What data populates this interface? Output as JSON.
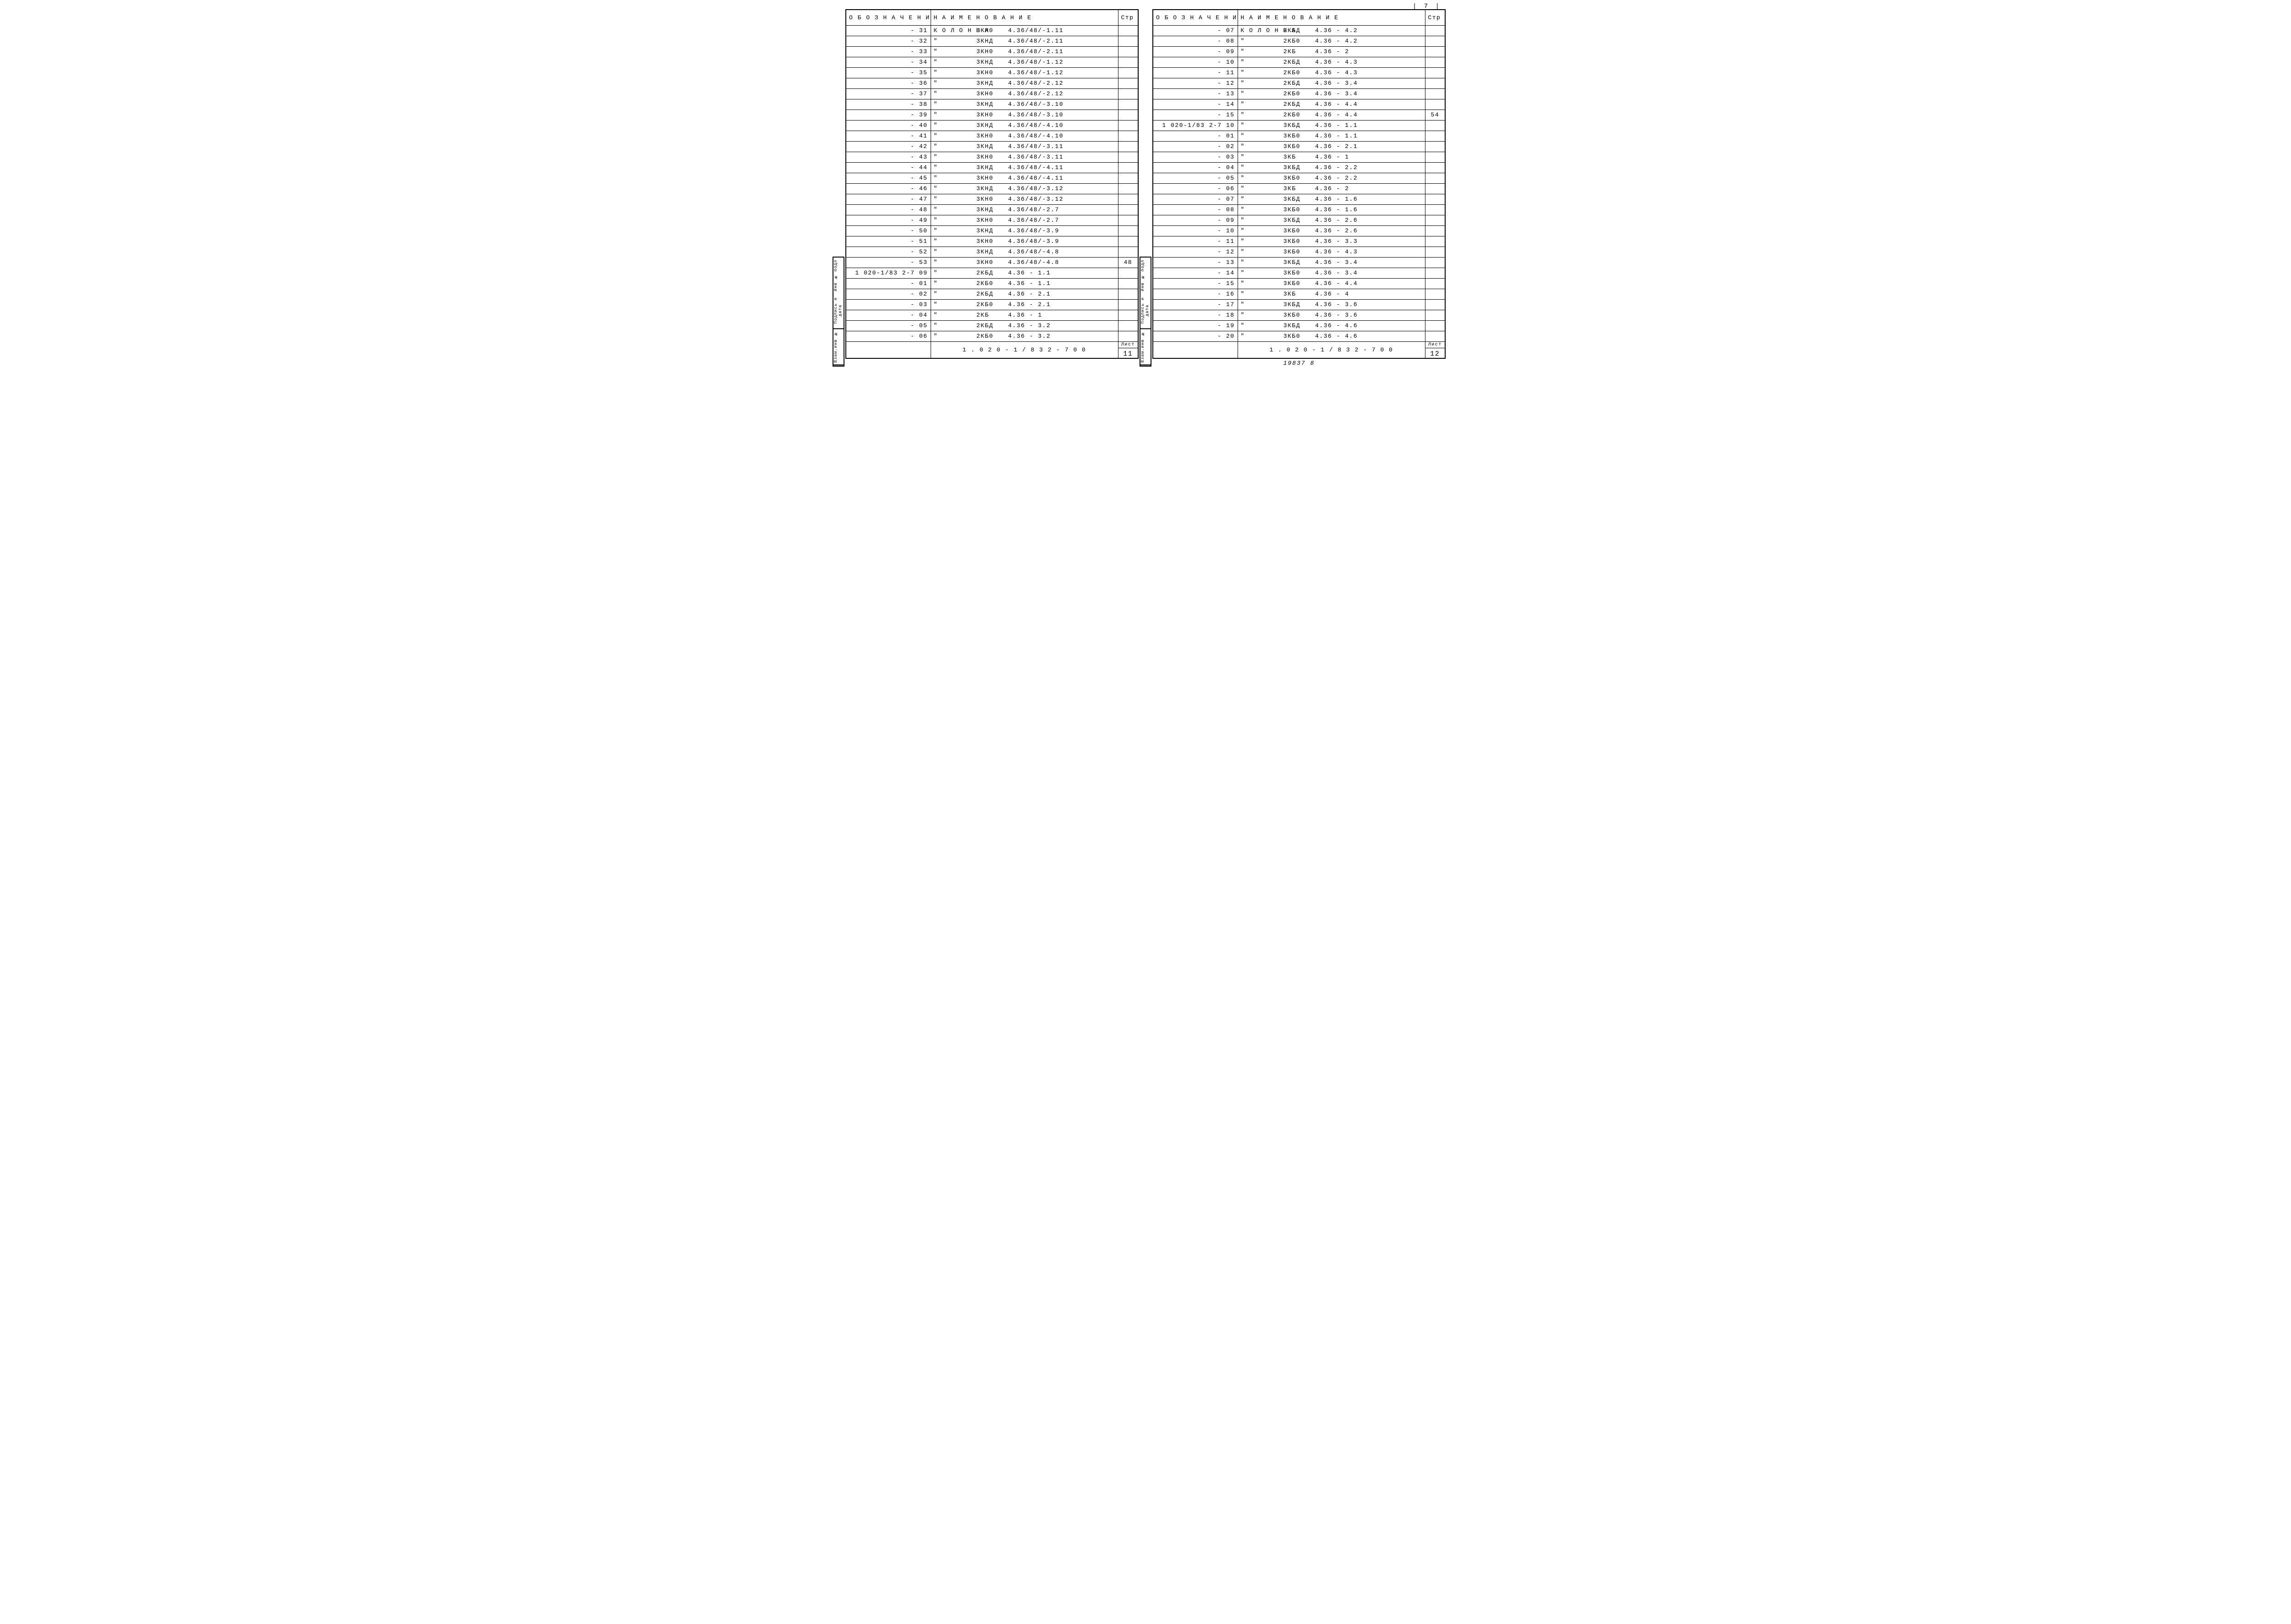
{
  "headers": {
    "designation": "О Б О З Н А Ч Е Н И Е",
    "name": "Н А И М Е Н О В А Н И Е",
    "page": "Стр"
  },
  "doc_number": "1 . 0 2 0 - 1 / 8 3   2 - 7   0 0",
  "sheet_label": "Лист",
  "page_num_top": "| 7 |",
  "below_note": "19837  8",
  "sidebar": [
    "Инв № подл",
    "Подпись и дата",
    "Взам.инв №"
  ],
  "left": {
    "sheet": "11",
    "rows": [
      {
        "des": "- 31",
        "pref": "К О Л О Н Н А",
        "code": "3КН0",
        "val": "4.36/48/-1.11",
        "pg": ""
      },
      {
        "des": "- 32",
        "pref": "\"",
        "code": "3КНД",
        "val": "4.36/48/-2.11",
        "pg": ""
      },
      {
        "des": "- 33",
        "pref": "\"",
        "code": "3КН0",
        "val": "4.36/48/-2.11",
        "pg": ""
      },
      {
        "des": "- 34",
        "pref": "\"",
        "code": "3КНД",
        "val": "4.36/48/-1.12",
        "pg": ""
      },
      {
        "des": "- 35",
        "pref": "\"",
        "code": "3КН0",
        "val": "4.36/48/-1.12",
        "pg": ""
      },
      {
        "des": "- 36",
        "pref": "\"",
        "code": "3КНД",
        "val": "4.36/48/-2.12",
        "pg": ""
      },
      {
        "des": "- 37",
        "pref": "\"",
        "code": "3КН0",
        "val": "4.36/48/-2.12",
        "pg": ""
      },
      {
        "des": "- 38",
        "pref": "\"",
        "code": "3КНД",
        "val": "4.36/48/-3.10",
        "pg": ""
      },
      {
        "des": "- 39",
        "pref": "\"",
        "code": "3КН0",
        "val": "4.36/48/-3.10",
        "pg": ""
      },
      {
        "des": "- 40",
        "pref": "\"",
        "code": "3КНД",
        "val": "4.36/48/-4.10",
        "pg": ""
      },
      {
        "des": "- 41",
        "pref": "\"",
        "code": "3КН0",
        "val": "4.36/48/-4.10",
        "pg": ""
      },
      {
        "des": "- 42",
        "pref": "\"",
        "code": "3КНД",
        "val": "4.36/48/-3.11",
        "pg": ""
      },
      {
        "des": "- 43",
        "pref": "\"",
        "code": "3КН0",
        "val": "4.36/48/-3.11",
        "pg": ""
      },
      {
        "des": "- 44",
        "pref": "\"",
        "code": "3КНД",
        "val": "4.36/48/-4.11",
        "pg": ""
      },
      {
        "des": "- 45",
        "pref": "\"",
        "code": "3КН0",
        "val": "4.36/48/-4.11",
        "pg": ""
      },
      {
        "des": "- 46",
        "pref": "\"",
        "code": "3КНД",
        "val": "4.36/48/-3.12",
        "pg": ""
      },
      {
        "des": "- 47",
        "pref": "\"",
        "code": "3КН0",
        "val": "4.36/48/-3.12",
        "pg": ""
      },
      {
        "des": "- 48",
        "pref": "\"",
        "code": "3КНД",
        "val": "4.36/48/-2.7",
        "pg": ""
      },
      {
        "des": "- 49",
        "pref": "\"",
        "code": "3КН0",
        "val": "4.36/48/-2.7",
        "pg": ""
      },
      {
        "des": "- 50",
        "pref": "\"",
        "code": "3КНД",
        "val": "4.36/48/-3.9",
        "pg": ""
      },
      {
        "des": "- 51",
        "pref": "\"",
        "code": "3КН0",
        "val": "4.36/48/-3.9",
        "pg": ""
      },
      {
        "des": "- 52",
        "pref": "\"",
        "code": "3КНД",
        "val": "4.36/48/-4.8",
        "pg": ""
      },
      {
        "des": "- 53",
        "pref": "\"",
        "code": "3КН0",
        "val": "4.36/48/-4.8",
        "pg": "48"
      },
      {
        "des": "1 020-1/83 2-7 09",
        "pref": "\"",
        "code": "2КБД",
        "val": "4.36 - 1.1",
        "pg": ""
      },
      {
        "des": "- 01",
        "pref": "\"",
        "code": "2КБ0",
        "val": "4.36 - 1.1",
        "pg": ""
      },
      {
        "des": "- 02",
        "pref": "\"",
        "code": "2КБД",
        "val": "4.36 - 2.1",
        "pg": ""
      },
      {
        "des": "- 03",
        "pref": "\"",
        "code": "2КБ0",
        "val": "4.36 - 2.1",
        "pg": ""
      },
      {
        "des": "- 04",
        "pref": "\"",
        "code": "2КБ",
        "val": "4.36 - 1",
        "pg": ""
      },
      {
        "des": "- 05",
        "pref": "\"",
        "code": "2КБД",
        "val": "4.36 - 3.2",
        "pg": ""
      },
      {
        "des": "- 06",
        "pref": "\"",
        "code": "2КБ0",
        "val": "4.36 - 3.2",
        "pg": ""
      }
    ]
  },
  "right": {
    "sheet": "12",
    "rows": [
      {
        "des": "- 07",
        "pref": "К О Л О Н Н А",
        "code": "2КБД",
        "val": "4.36 - 4.2",
        "pg": ""
      },
      {
        "des": "- 08",
        "pref": "\"",
        "code": "2КБ0",
        "val": "4.36 - 4.2",
        "pg": ""
      },
      {
        "des": "- 09",
        "pref": "\"",
        "code": "2КБ",
        "val": "4.36 - 2",
        "pg": ""
      },
      {
        "des": "- 10",
        "pref": "\"",
        "code": "2КБД",
        "val": "4.36 - 4.3",
        "pg": ""
      },
      {
        "des": "- 11",
        "pref": "\"",
        "code": "2КБ0",
        "val": "4.36 - 4.3",
        "pg": ""
      },
      {
        "des": "- 12",
        "pref": "\"",
        "code": "2КБД",
        "val": "4.36 - 3.4",
        "pg": ""
      },
      {
        "des": "- 13",
        "pref": "\"",
        "code": "2КБ0",
        "val": "4.36 - 3.4",
        "pg": ""
      },
      {
        "des": "- 14",
        "pref": "\"",
        "code": "2КБД",
        "val": "4.36 - 4.4",
        "pg": ""
      },
      {
        "des": "- 15",
        "pref": "\"",
        "code": "2КБ0",
        "val": "4.36 - 4.4",
        "pg": "54"
      },
      {
        "des": "1 020-1/83 2-7 10",
        "pref": "\"",
        "code": "3КБД",
        "val": "4.36 - 1.1",
        "pg": ""
      },
      {
        "des": "- 01",
        "pref": "\"",
        "code": "3КБ0",
        "val": "4.36 - 1.1",
        "pg": ""
      },
      {
        "des": "- 02",
        "pref": "\"",
        "code": "3КБ0",
        "val": "4.36 - 2.1",
        "pg": ""
      },
      {
        "des": "- 03",
        "pref": "\"",
        "code": "3КБ",
        "val": "4.36 - 1",
        "pg": ""
      },
      {
        "des": "- 04",
        "pref": "\"",
        "code": "3КБД",
        "val": "4.36 - 2.2",
        "pg": ""
      },
      {
        "des": "- 05",
        "pref": "\"",
        "code": "3КБ0",
        "val": "4.36 - 2.2",
        "pg": ""
      },
      {
        "des": "- 06",
        "pref": "\"",
        "code": "3КБ",
        "val": "4.36 - 2",
        "pg": ""
      },
      {
        "des": "- 07",
        "pref": "\"",
        "code": "3КБД",
        "val": "4.36 - 1.6",
        "pg": ""
      },
      {
        "des": "- 08",
        "pref": "\"",
        "code": "3КБ0",
        "val": "4.36 - 1.6",
        "pg": ""
      },
      {
        "des": "- 09",
        "pref": "\"",
        "code": "3КБД",
        "val": "4.36 - 2.6",
        "pg": ""
      },
      {
        "des": "- 10",
        "pref": "\"",
        "code": "3КБ0",
        "val": "4.36 - 2.6",
        "pg": ""
      },
      {
        "des": "- 11",
        "pref": "\"",
        "code": "3КБ0",
        "val": "4.36 - 3.3",
        "pg": ""
      },
      {
        "des": "- 12",
        "pref": "\"",
        "code": "3КБ0",
        "val": "4.36 - 4.3",
        "pg": ""
      },
      {
        "des": "- 13",
        "pref": "\"",
        "code": "3КБД",
        "val": "4.36 - 3.4",
        "pg": ""
      },
      {
        "des": "- 14",
        "pref": "\"",
        "code": "3КБ0",
        "val": "4.36 - 3.4",
        "pg": ""
      },
      {
        "des": "- 15",
        "pref": "\"",
        "code": "3КБ0",
        "val": "4.36 - 4.4",
        "pg": ""
      },
      {
        "des": "- 16",
        "pref": "\"",
        "code": "3КБ",
        "val": "4.36 - 4",
        "pg": ""
      },
      {
        "des": "- 17",
        "pref": "\"",
        "code": "3КБД",
        "val": "4.36 - 3.6",
        "pg": ""
      },
      {
        "des": "- 18",
        "pref": "\"",
        "code": "3КБ0",
        "val": "4.36 - 3.6",
        "pg": ""
      },
      {
        "des": "- 19",
        "pref": "\"",
        "code": "3КБД",
        "val": "4.36 - 4.6",
        "pg": ""
      },
      {
        "des": "- 20",
        "pref": "\"",
        "code": "3КБ0",
        "val": "4.36 - 4.6",
        "pg": ""
      }
    ]
  }
}
